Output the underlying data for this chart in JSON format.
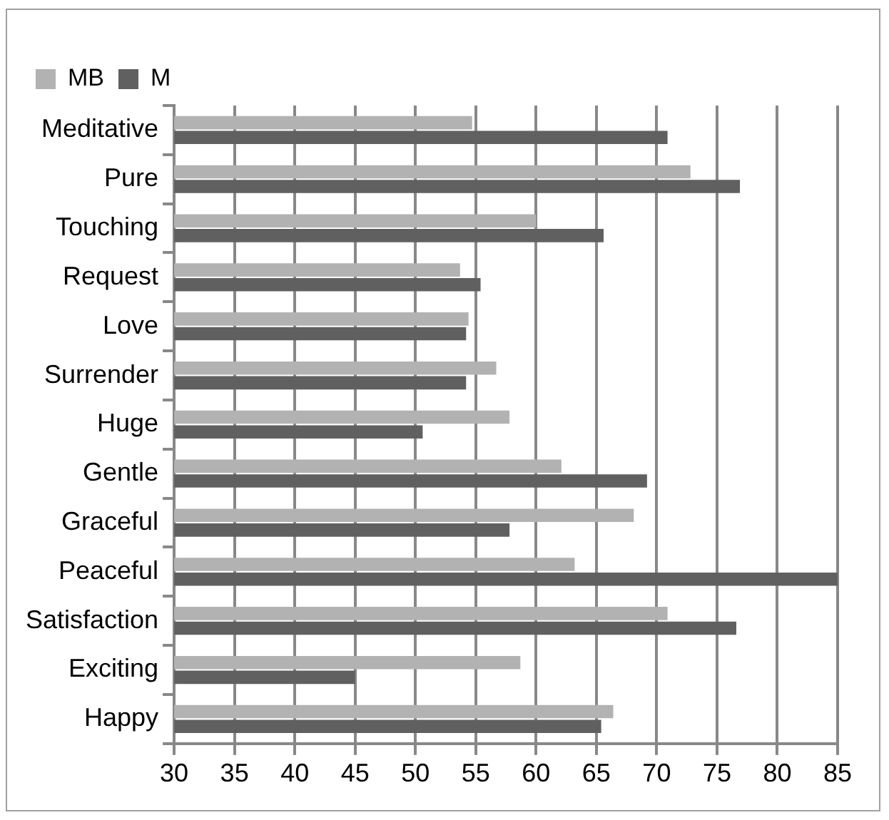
{
  "chart_data": {
    "type": "bar",
    "orientation": "horizontal",
    "categories": [
      "Meditative",
      "Pure",
      "Touching",
      "Request",
      "Love",
      "Surrender",
      "Huge",
      "Gentle",
      "Graceful",
      "Peaceful",
      "Satisfaction",
      "Exciting",
      "Happy"
    ],
    "series": [
      {
        "name": "MB",
        "color": "#b2b2b2",
        "values": [
          54.7,
          72.8,
          60.0,
          53.7,
          54.4,
          56.7,
          57.8,
          62.1,
          68.1,
          63.2,
          70.9,
          58.7,
          66.4
        ]
      },
      {
        "name": "M",
        "color": "#606060",
        "values": [
          70.9,
          76.9,
          65.6,
          55.4,
          54.2,
          54.2,
          50.6,
          69.2,
          57.8,
          85,
          76.6,
          45,
          65.4
        ]
      }
    ],
    "xlim": [
      30,
      85
    ],
    "xticks": [
      30,
      35,
      40,
      45,
      50,
      55,
      60,
      65,
      70,
      75,
      80,
      85
    ],
    "grid": "x",
    "legend": "top left"
  }
}
